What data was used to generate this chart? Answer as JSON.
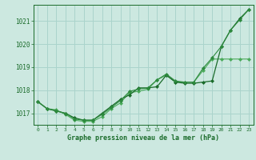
{
  "background_color": "#cce8e0",
  "grid_color": "#aad4cc",
  "line_color1": "#1a6b2a",
  "line_color2": "#2d8a3e",
  "line_color3": "#4aaa5a",
  "xlabel": "Graphe pression niveau de la mer (hPa)",
  "xlim": [
    -0.5,
    23.5
  ],
  "ylim": [
    1016.5,
    1021.7
  ],
  "yticks": [
    1017,
    1018,
    1019,
    1020,
    1021
  ],
  "xticks": [
    0,
    1,
    2,
    3,
    4,
    5,
    6,
    7,
    8,
    9,
    10,
    11,
    12,
    13,
    14,
    15,
    16,
    17,
    18,
    19,
    20,
    21,
    22,
    23
  ],
  "series1": [
    1017.5,
    1017.2,
    1017.1,
    1017.0,
    1016.8,
    1016.7,
    1016.7,
    1017.0,
    1017.3,
    1017.6,
    1017.8,
    1018.1,
    1018.1,
    1018.15,
    1018.65,
    1018.35,
    1018.3,
    1018.3,
    1018.35,
    1018.4,
    1019.9,
    1020.6,
    1021.1,
    1021.5
  ],
  "series2": [
    1017.5,
    1017.2,
    1017.1,
    1017.0,
    1016.75,
    1016.7,
    1016.7,
    1016.95,
    1017.25,
    1017.55,
    1017.95,
    1018.05,
    1018.1,
    1018.45,
    1018.7,
    1018.4,
    1018.35,
    1018.35,
    1018.95,
    1019.4,
    1019.9,
    1020.6,
    1021.05,
    1021.5
  ],
  "series3": [
    1017.5,
    1017.2,
    1017.15,
    1016.95,
    1016.7,
    1016.65,
    1016.65,
    1016.85,
    1017.2,
    1017.45,
    1017.9,
    1017.95,
    1018.05,
    1018.45,
    1018.65,
    1018.35,
    1018.35,
    1018.35,
    1018.85,
    1019.35,
    1019.35,
    1019.35,
    1019.35,
    1019.35
  ]
}
